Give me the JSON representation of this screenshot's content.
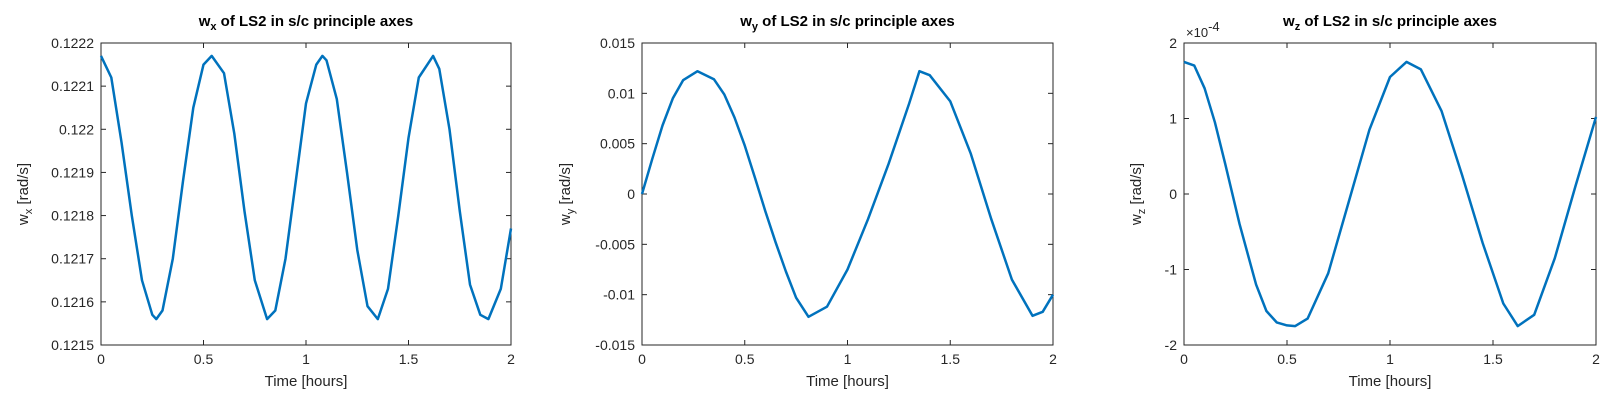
{
  "chart_data": [
    {
      "type": "line",
      "title": {
        "base": "w",
        "sub": "x",
        "rest": " of LS2 in s/c principle axes"
      },
      "xlabel": "Time [hours]",
      "ylabel": {
        "base": "w",
        "sub": "x",
        "rest": " [rad/s]"
      },
      "xlim": [
        0,
        2
      ],
      "ylim": [
        0.1215,
        0.1222
      ],
      "xticks": [
        0,
        0.5,
        1,
        1.5,
        2
      ],
      "xtick_labels": [
        "0",
        "0.5",
        "1",
        "1.5",
        "2"
      ],
      "yticks": [
        0.1215,
        0.1216,
        0.1217,
        0.1218,
        0.1219,
        0.122,
        0.1221,
        0.1222
      ],
      "ytick_labels": [
        "0.1215",
        "0.1216",
        "0.1217",
        "0.1218",
        "0.1219",
        "0.122",
        "0.1221",
        "0.1222"
      ],
      "exponent_label": null,
      "grid": false,
      "series": [
        {
          "color": "#0072BD",
          "x": [
            0,
            0.05,
            0.1,
            0.15,
            0.2,
            0.25,
            0.27,
            0.3,
            0.35,
            0.4,
            0.45,
            0.5,
            0.54,
            0.6,
            0.65,
            0.7,
            0.75,
            0.81,
            0.85,
            0.9,
            0.95,
            1.0,
            1.05,
            1.08,
            1.1,
            1.15,
            1.2,
            1.25,
            1.3,
            1.35,
            1.4,
            1.45,
            1.5,
            1.55,
            1.62,
            1.65,
            1.7,
            1.75,
            1.8,
            1.85,
            1.89,
            1.95,
            2.0
          ],
          "y": [
            0.12217,
            0.12212,
            0.12197,
            0.1218,
            0.12165,
            0.12157,
            0.12156,
            0.12158,
            0.1217,
            0.12188,
            0.12205,
            0.12215,
            0.12217,
            0.12213,
            0.12199,
            0.12181,
            0.12165,
            0.12156,
            0.12158,
            0.1217,
            0.12188,
            0.12206,
            0.12215,
            0.12217,
            0.12216,
            0.12207,
            0.1219,
            0.12172,
            0.12159,
            0.12156,
            0.12163,
            0.1218,
            0.12198,
            0.12212,
            0.12217,
            0.12214,
            0.122,
            0.12181,
            0.12164,
            0.12157,
            0.12156,
            0.12163,
            0.12177
          ]
        }
      ]
    },
    {
      "type": "line",
      "title": {
        "base": "w",
        "sub": "y",
        "rest": " of LS2 in s/c principle axes"
      },
      "xlabel": "Time [hours]",
      "ylabel": {
        "base": "w",
        "sub": "y",
        "rest": " [rad/s]"
      },
      "xlim": [
        0,
        2
      ],
      "ylim": [
        -0.015,
        0.015
      ],
      "xticks": [
        0,
        0.5,
        1,
        1.5,
        2
      ],
      "xtick_labels": [
        "0",
        "0.5",
        "1",
        "1.5",
        "2"
      ],
      "yticks": [
        -0.015,
        -0.01,
        -0.005,
        0,
        0.005,
        0.01,
        0.015
      ],
      "ytick_labels": [
        "-0.015",
        "-0.01",
        "-0.005",
        "0",
        "0.005",
        "0.01",
        "0.015"
      ],
      "exponent_label": null,
      "grid": false,
      "series": [
        {
          "color": "#0072BD",
          "x": [
            0,
            0.05,
            0.1,
            0.15,
            0.2,
            0.27,
            0.35,
            0.4,
            0.45,
            0.5,
            0.55,
            0.6,
            0.65,
            0.7,
            0.75,
            0.81,
            0.9,
            1.0,
            1.1,
            1.2,
            1.3,
            1.35,
            1.4,
            1.5,
            1.6,
            1.7,
            1.8,
            1.9,
            1.95,
            2.0
          ],
          "y": [
            0,
            0.0035,
            0.0068,
            0.0095,
            0.0113,
            0.0122,
            0.0114,
            0.0099,
            0.0076,
            0.0048,
            0.0016,
            -0.0017,
            -0.0048,
            -0.0077,
            -0.0103,
            -0.0122,
            -0.0112,
            -0.0075,
            -0.0025,
            0.003,
            0.009,
            0.0122,
            0.0118,
            0.0092,
            0.004,
            -0.0025,
            -0.0085,
            -0.0121,
            -0.0117,
            -0.01
          ]
        }
      ]
    },
    {
      "type": "line",
      "title": {
        "base": "w",
        "sub": "z",
        "rest": " of LS2 in s/c principle axes"
      },
      "xlabel": "Time [hours]",
      "ylabel": {
        "base": "w",
        "sub": "z",
        "rest": " [rad/s]"
      },
      "xlim": [
        0,
        2
      ],
      "ylim": [
        -2,
        2
      ],
      "xticks": [
        0,
        0.5,
        1,
        1.5,
        2
      ],
      "xtick_labels": [
        "0",
        "0.5",
        "1",
        "1.5",
        "2"
      ],
      "yticks": [
        -2,
        -1,
        0,
        1,
        2
      ],
      "ytick_labels": [
        "-2",
        "-1",
        "0",
        "1",
        "2"
      ],
      "exponent_label": {
        "base": "×10",
        "sup": "-4"
      },
      "grid": false,
      "series": [
        {
          "color": "#0072BD",
          "x": [
            0,
            0.05,
            0.1,
            0.15,
            0.2,
            0.27,
            0.35,
            0.4,
            0.45,
            0.5,
            0.54,
            0.6,
            0.7,
            0.8,
            0.9,
            1.0,
            1.08,
            1.15,
            1.25,
            1.35,
            1.45,
            1.55,
            1.62,
            1.7,
            1.8,
            1.9,
            2.0
          ],
          "y": [
            1.75,
            1.7,
            1.4,
            0.95,
            0.4,
            -0.4,
            -1.2,
            -1.55,
            -1.7,
            -1.74,
            -1.75,
            -1.65,
            -1.05,
            -0.1,
            0.85,
            1.55,
            1.75,
            1.65,
            1.1,
            0.25,
            -0.65,
            -1.45,
            -1.75,
            -1.6,
            -0.85,
            0.1,
            1.02
          ]
        }
      ]
    }
  ]
}
